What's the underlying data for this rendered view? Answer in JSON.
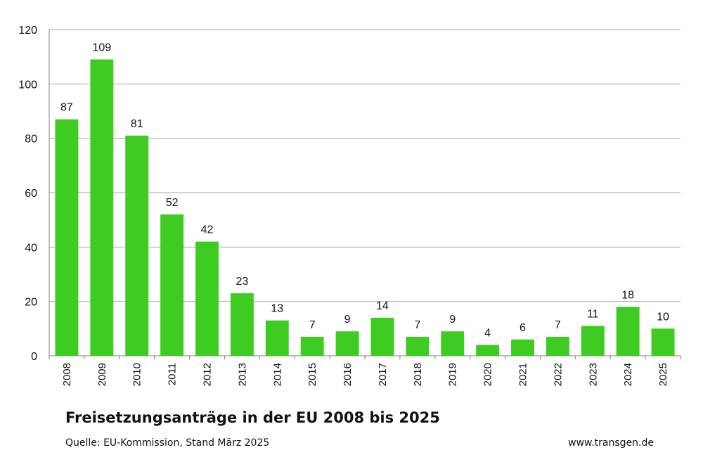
{
  "chart_data": {
    "type": "bar",
    "title": "Freisetzungsanträge in der EU 2008 bis 2025",
    "source": "Quelle: EU-Kommission, Stand März 2025",
    "website": "www.transgen.de",
    "categories": [
      "2008",
      "2009",
      "2010",
      "2011",
      "2012",
      "2013",
      "2014",
      "2015",
      "2016",
      "2017",
      "2018",
      "2019",
      "2020",
      "2021",
      "2022",
      "2023",
      "2024",
      "2025"
    ],
    "values": [
      87,
      109,
      81,
      52,
      42,
      23,
      13,
      7,
      9,
      14,
      7,
      9,
      4,
      6,
      7,
      11,
      18,
      10
    ],
    "ylim": [
      0,
      120
    ],
    "yticks": [
      0,
      20,
      40,
      60,
      80,
      100,
      120
    ],
    "grid": true,
    "bar_color": "#3fcc22",
    "data_labels": true
  }
}
